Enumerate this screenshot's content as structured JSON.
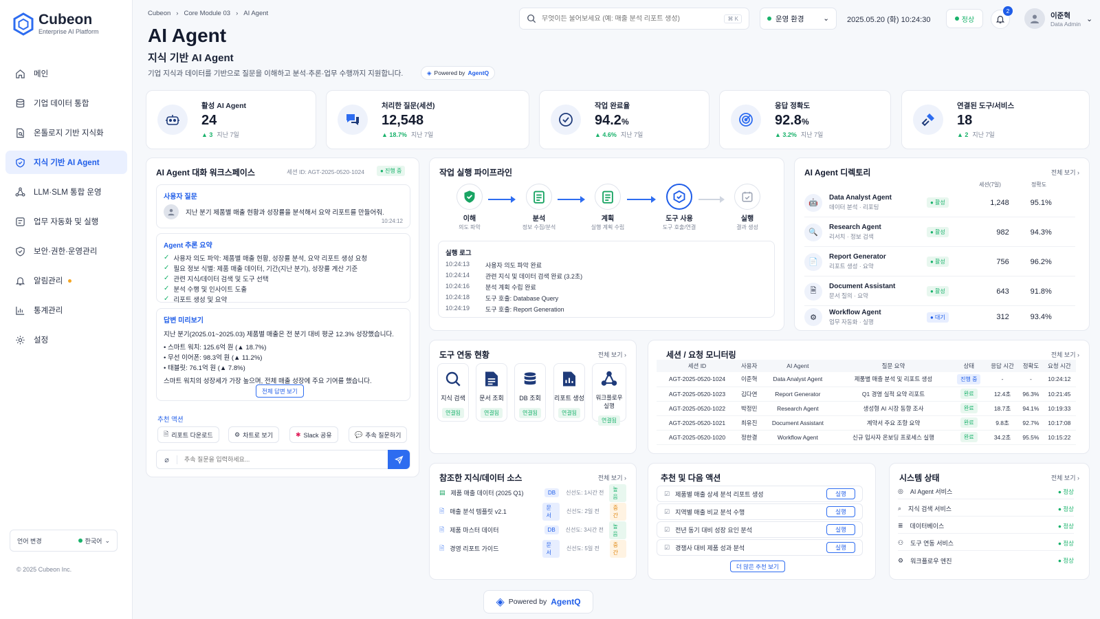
{
  "brand": {
    "name": "Cubeon",
    "tagline": "Enterprise AI Platform",
    "copyright": "© 2025 Cubeon Inc."
  },
  "sidebar": {
    "items": [
      {
        "label": "메인",
        "icon": "home-icon"
      },
      {
        "label": "기업 데이터 통합",
        "icon": "database-icon"
      },
      {
        "label": "온톨로지 기반 지식화",
        "icon": "document-icon"
      },
      {
        "label": "지식 기반 AI Agent",
        "icon": "shield-icon",
        "active": true
      },
      {
        "label": "LLM·SLM 통합 운영",
        "icon": "network-icon"
      },
      {
        "label": "업무 자동화 및 실행",
        "icon": "workflow-icon"
      },
      {
        "label": "보안·권한·운영관리",
        "icon": "shield-check-icon"
      },
      {
        "label": "알림관리",
        "icon": "bell-icon"
      },
      {
        "label": "통계관리",
        "icon": "chart-icon"
      },
      {
        "label": "설정",
        "icon": "gear-icon"
      }
    ],
    "lang_label": "언어 변경",
    "lang_value": "한국어"
  },
  "breadcrumb": [
    "Cubeon",
    "Core Module 03",
    "AI Agent"
  ],
  "page": {
    "title": "AI Agent",
    "subtitle": "지식 기반 AI Agent",
    "desc": "기업 지식과 데이터를 기반으로 질문을 이해하고 분석·추론·업무 수행까지 지원합니다.",
    "powered_prefix": "Powered by",
    "powered_brand": "AgentQ"
  },
  "topbar": {
    "search_placeholder": "무엇이든 물어보세요 (예: 매출 분석 리포트 생성)",
    "search_kbd": "⌘ K",
    "env": "운영 환경",
    "datetime": "2025.05.20 (화) 10:24:30",
    "status": "정상",
    "notifications": "2",
    "user_name": "이준혁",
    "user_role": "Data Admin"
  },
  "kpis": [
    {
      "label": "활성 AI Agent",
      "value": "24",
      "unit": "",
      "delta": "▲ 3",
      "period": "지난 7일",
      "icon": "robot-icon"
    },
    {
      "label": "처리한 질문(세션)",
      "value": "12,548",
      "unit": "",
      "delta": "▲ 18.7%",
      "period": "지난 7일",
      "icon": "chat-icon"
    },
    {
      "label": "작업 완료율",
      "value": "94.2",
      "unit": "%",
      "delta": "▲ 4.6%",
      "period": "지난 7일",
      "icon": "check-circle-icon"
    },
    {
      "label": "응답 정확도",
      "value": "92.8",
      "unit": "%",
      "delta": "▲ 3.2%",
      "period": "지난 7일",
      "icon": "target-icon"
    },
    {
      "label": "연결된 도구/서비스",
      "value": "18",
      "unit": "",
      "delta": "▲ 2",
      "period": "지난 7일",
      "icon": "plug-icon"
    }
  ],
  "workspace": {
    "title": "AI Agent 대화 워크스페이스",
    "session": "세션 ID: AGT-2025-0520-1024",
    "status": "● 진행 중",
    "q_label": "사용자 질문",
    "question": "지난 분기 제품별 매출 현황과 성장률을 분석해서 요약 리포트를 만들어줘.",
    "q_time": "10:24:12",
    "reason_label": "Agent 추론 요약",
    "reasons": [
      "사용자 의도 파악: 제품별 매출 현황, 성장률 분석, 요약 리포트 생성 요청",
      "필요 정보 식별: 제품 매출 데이터, 기간(지난 분기), 성장률 계산 기준",
      "관련 지식/데이터 검색 및 도구 선택",
      "분석 수행 및 인사이트 도출",
      "리포트 생성 및 요약"
    ],
    "answer_label": "답변 미리보기",
    "answer_intro": "지난 분기(2025.01~2025.03) 제품별 매출은 전 분기 대비 평균 12.3% 성장했습니다.",
    "answer_items": [
      "• 스마트 워치: 125.6억 원 (▲ 18.7%)",
      "• 무선 이어폰: 98.3억 원 (▲ 11.2%)",
      "• 태블릿: 76.1억 원 (▲ 7.8%)"
    ],
    "answer_outro": "스마트 워치의 성장세가 가장 높으며, 전체 매출 성장에 주요 기여를 했습니다.",
    "full_answer": "전체 답변 보기",
    "actions_label": "추천 액션",
    "actions": [
      "리포트 다운로드",
      "차트로 보기",
      "Slack 공유",
      "추속 질문하기"
    ],
    "input_placeholder": "추속 질문을 입력하세요..."
  },
  "pipeline": {
    "title": "작업 실행 파이프라인",
    "stages": [
      {
        "name": "이해",
        "sub": "의도 파악"
      },
      {
        "name": "분석",
        "sub": "정보 수집/분석"
      },
      {
        "name": "계획",
        "sub": "실행 계획 수립"
      },
      {
        "name": "도구 사용",
        "sub": "도구 호출/연결"
      },
      {
        "name": "실행",
        "sub": "결과 생성"
      }
    ],
    "log_title": "실행 로그",
    "logs": [
      {
        "t": "10:24:13",
        "m": "사용자 의도 파악 완료"
      },
      {
        "t": "10:24:14",
        "m": "관련 지식 및 데이터 검색 완료 (3.2초)"
      },
      {
        "t": "10:24:16",
        "m": "분석 계획 수립 완료"
      },
      {
        "t": "10:24:18",
        "m": "도구 호출: Database Query"
      },
      {
        "t": "10:24:19",
        "m": "도구 호출: Report Generation"
      }
    ]
  },
  "directory": {
    "title": "AI Agent 디렉토리",
    "see_all": "전체 보기 ›",
    "col_sessions": "세션(7일)",
    "col_acc": "정확도",
    "agents": [
      {
        "name": "Data Analyst Agent",
        "desc": "데이터 분석 · 리포팅",
        "status": "● 활성",
        "sessions": "1,248",
        "acc": "95.1%"
      },
      {
        "name": "Research Agent",
        "desc": "리서치 · 정보 검색",
        "status": "● 활성",
        "sessions": "982",
        "acc": "94.3%"
      },
      {
        "name": "Report Generator",
        "desc": "리포트 생성 · 요약",
        "status": "● 활성",
        "sessions": "756",
        "acc": "96.2%"
      },
      {
        "name": "Document Assistant",
        "desc": "문서 질의 · 요약",
        "status": "● 활성",
        "sessions": "643",
        "acc": "91.8%"
      },
      {
        "name": "Workflow Agent",
        "desc": "업무 자동화 · 실행",
        "status": "● 대기",
        "sessions": "312",
        "acc": "93.4%"
      }
    ]
  },
  "tools": {
    "title": "도구 연동 현황",
    "see_all": "전체 보기 ›",
    "items": [
      {
        "name": "지식 검색",
        "status": "연결됨"
      },
      {
        "name": "문서 조회",
        "status": "연결됨"
      },
      {
        "name": "DB 조회",
        "status": "연결됨"
      },
      {
        "name": "리포트 생성",
        "status": "연결됨"
      },
      {
        "name": "워크플로우 실행",
        "status": "연결됨"
      }
    ]
  },
  "monitor": {
    "title": "세션 / 요청 모니터링",
    "see_all": "전체 보기 ›",
    "headers": [
      "세션 ID",
      "사용자",
      "AI Agent",
      "질문 요약",
      "상태",
      "응답 시간",
      "정확도",
      "요청 시간"
    ],
    "rows": [
      [
        "AGT-2025-0520-1024",
        "이준혁",
        "Data Analyst Agent",
        "제품별 매출 분석 및 리포트 생성",
        "진행 중",
        "-",
        "-",
        "10:24:12"
      ],
      [
        "AGT-2025-0520-1023",
        "김다연",
        "Report Generator",
        "Q1 경영 실적 요약 리포트",
        "완료",
        "12.4초",
        "96.3%",
        "10:21:45"
      ],
      [
        "AGT-2025-0520-1022",
        "박정민",
        "Research Agent",
        "생성형 AI 시장 동향 조사",
        "완료",
        "18.7초",
        "94.1%",
        "10:19:33"
      ],
      [
        "AGT-2025-0520-1021",
        "최유진",
        "Document Assistant",
        "계약서 주요 조항 요약",
        "완료",
        "9.8초",
        "92.7%",
        "10:17:08"
      ],
      [
        "AGT-2025-0520-1020",
        "정한결",
        "Workflow Agent",
        "신규 입사자 온보딩 프로세스 실행",
        "완료",
        "34.2초",
        "95.5%",
        "10:15:22"
      ]
    ]
  },
  "sources": {
    "title": "참조한 지식/데이터 소스",
    "see_all": "전체 보기 ›",
    "items": [
      {
        "name": "제품 매출 데이터 (2025 Q1)",
        "type": "DB",
        "fresh": "신선도: 1시간 전",
        "level": "높음"
      },
      {
        "name": "매출 분석 템플릿 v2.1",
        "type": "문서",
        "fresh": "신선도: 2일 전",
        "level": "중간"
      },
      {
        "name": "제품 마스터 데이터",
        "type": "DB",
        "fresh": "신선도: 3시간 전",
        "level": "높음"
      },
      {
        "name": "경영 리포트 가이드",
        "type": "문서",
        "fresh": "신선도: 5일 전",
        "level": "중간"
      }
    ]
  },
  "next": {
    "title": "추천 및 다음 액션",
    "run": "실행",
    "more": "더 많은 추천 보기",
    "items": [
      "제품별 매출 상세 분석 리포트 생성",
      "지역별 매출 비교 분석 수행",
      "전년 동기 대비 성장 요인 분석",
      "경쟁사 대비 제품 성과 분석"
    ]
  },
  "system": {
    "title": "시스템 상태",
    "see_all": "전체 보기 ›",
    "ok": "● 정상",
    "items": [
      "AI Agent 서비스",
      "지식 검색 서비스",
      "데이터베이스",
      "도구 연동 서비스",
      "워크플로우 엔진"
    ]
  },
  "footer": {
    "prefix": "Powered by",
    "brand": "AgentQ"
  },
  "colors": {
    "accent": "#1f5de8",
    "success": "#19b26b",
    "warning": "#e08a16"
  }
}
